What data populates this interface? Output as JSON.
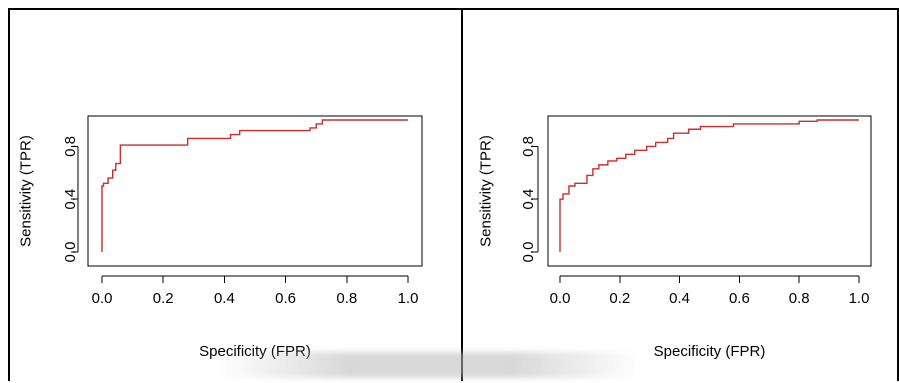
{
  "colors": {
    "roc_line": "#d22b2b",
    "frame": "#000000",
    "background": "#ffffff"
  },
  "chart_data": [
    {
      "type": "line",
      "xlabel": "Specificity (FPR)",
      "ylabel": "Sensitivity (TPR)",
      "xlim": [
        0,
        1
      ],
      "ylim": [
        0,
        1
      ],
      "x_ticks": [
        "0.0",
        "0.2",
        "0.4",
        "0.6",
        "0.8",
        "1.0"
      ],
      "y_ticks": [
        "0.0",
        "0.4",
        "0.8"
      ],
      "grid": false,
      "series": [
        {
          "x": [
            0.0,
            0.0,
            0.005,
            0.005,
            0.02,
            0.02,
            0.035,
            0.035,
            0.045,
            0.045,
            0.06,
            0.06,
            0.28,
            0.28,
            0.42,
            0.42,
            0.45,
            0.45,
            0.68,
            0.68,
            0.7,
            0.7,
            0.72,
            0.72,
            1.0
          ],
          "y": [
            0.0,
            0.5,
            0.5,
            0.52,
            0.52,
            0.56,
            0.56,
            0.62,
            0.62,
            0.67,
            0.67,
            0.81,
            0.81,
            0.86,
            0.86,
            0.89,
            0.89,
            0.92,
            0.92,
            0.94,
            0.94,
            0.97,
            0.97,
            1.0,
            1.0
          ]
        }
      ]
    },
    {
      "type": "line",
      "xlabel": "Specificity (FPR)",
      "ylabel": "Sensitivity (TPR)",
      "xlim": [
        0,
        1
      ],
      "ylim": [
        0,
        1
      ],
      "x_ticks": [
        "0.0",
        "0.2",
        "0.4",
        "0.6",
        "0.8",
        "1.0"
      ],
      "y_ticks": [
        "0.0",
        "0.4",
        "0.8"
      ],
      "grid": false,
      "series": [
        {
          "x": [
            0.0,
            0.0,
            0.01,
            0.01,
            0.03,
            0.03,
            0.05,
            0.05,
            0.09,
            0.09,
            0.11,
            0.11,
            0.13,
            0.13,
            0.16,
            0.16,
            0.19,
            0.19,
            0.22,
            0.22,
            0.25,
            0.25,
            0.29,
            0.29,
            0.32,
            0.32,
            0.36,
            0.36,
            0.38,
            0.38,
            0.43,
            0.43,
            0.47,
            0.47,
            0.58,
            0.58,
            0.8,
            0.8,
            0.86,
            0.86,
            1.0
          ],
          "y": [
            0.0,
            0.4,
            0.4,
            0.44,
            0.44,
            0.5,
            0.5,
            0.52,
            0.52,
            0.58,
            0.58,
            0.63,
            0.63,
            0.66,
            0.66,
            0.69,
            0.69,
            0.71,
            0.71,
            0.74,
            0.74,
            0.77,
            0.77,
            0.8,
            0.8,
            0.83,
            0.83,
            0.86,
            0.86,
            0.9,
            0.9,
            0.93,
            0.93,
            0.95,
            0.95,
            0.97,
            0.97,
            0.99,
            0.99,
            1.0,
            1.0
          ]
        }
      ]
    }
  ]
}
